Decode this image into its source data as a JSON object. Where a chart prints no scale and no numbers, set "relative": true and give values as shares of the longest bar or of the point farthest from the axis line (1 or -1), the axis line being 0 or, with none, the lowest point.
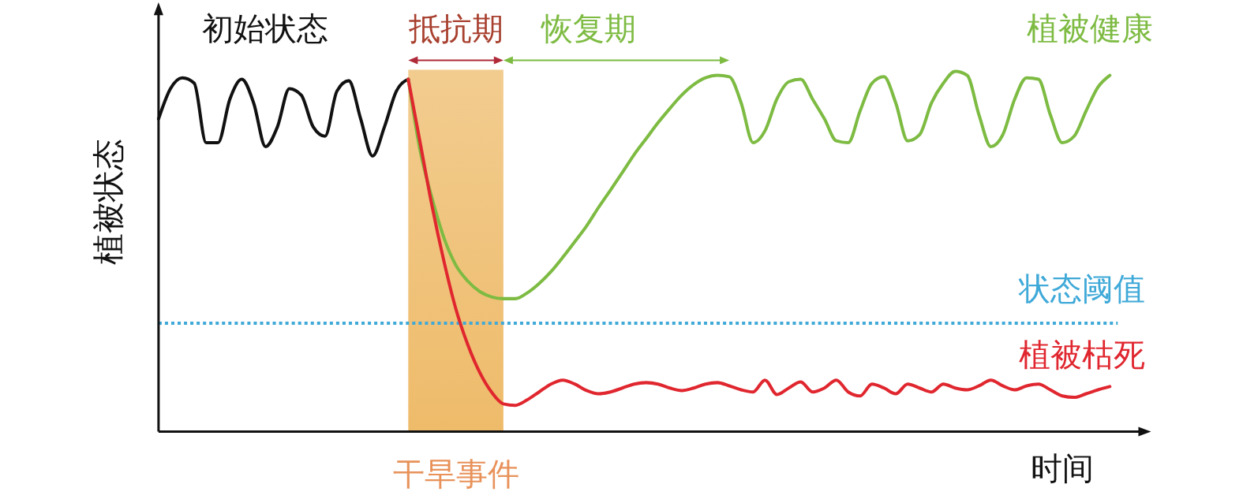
{
  "chart_data": {
    "type": "line",
    "relative": true,
    "xlabel": "时间",
    "ylabel": "植被状态",
    "categories": [
      null,
      null,
      null,
      null,
      null,
      null,
      null,
      null,
      null,
      null,
      null,
      null,
      null,
      null,
      null,
      null,
      null,
      null,
      null,
      null,
      null,
      null,
      null,
      null,
      null,
      null,
      null,
      null,
      null,
      null,
      null,
      null,
      null,
      null,
      null,
      null,
      null,
      null,
      null,
      null,
      null,
      null,
      null,
      null,
      null,
      null,
      null,
      null,
      null,
      null,
      null,
      null,
      null,
      null,
      null,
      null,
      null,
      null,
      null,
      null,
      null,
      null,
      null,
      null,
      null,
      null,
      null,
      null,
      null,
      null,
      null,
      null,
      null,
      null,
      null,
      null,
      null,
      null,
      null,
      null,
      null
    ],
    "series": [
      {
        "name": "初始状态",
        "color": "#111111",
        "values": [
          0.868,
          0.952,
          0.982,
          0.967,
          0.802,
          0.802,
          0.923,
          0.978,
          0.912,
          0.791,
          0.846,
          0.952,
          0.934,
          0.846,
          0.82,
          0.945,
          0.974,
          0.868,
          0.765,
          0.846,
          0.945,
          0.978,
          null,
          null,
          null,
          null,
          null,
          null,
          null,
          null,
          null,
          null,
          null,
          null,
          null,
          null,
          null,
          null,
          null,
          null,
          null,
          null,
          null,
          null,
          null,
          null,
          null,
          null,
          null,
          null,
          null,
          null,
          null,
          null,
          null,
          null,
          null,
          null,
          null,
          null,
          null,
          null,
          null,
          null,
          null,
          null,
          null,
          null,
          null,
          null,
          null,
          null,
          null,
          null,
          null,
          null,
          null,
          null,
          null,
          null,
          null
        ]
      },
      {
        "name": "植被健康",
        "color": "#7dbb42",
        "values": [
          null,
          null,
          null,
          null,
          null,
          null,
          null,
          null,
          null,
          null,
          null,
          null,
          null,
          null,
          null,
          null,
          null,
          null,
          null,
          null,
          null,
          0.978,
          0.78,
          0.648,
          0.538,
          0.462,
          0.418,
          0.389,
          0.374,
          0.369,
          0.369,
          0.385,
          0.411,
          0.444,
          0.484,
          0.527,
          0.571,
          0.622,
          0.67,
          0.719,
          0.769,
          0.813,
          0.857,
          0.897,
          0.934,
          0.963,
          0.982,
          0.989,
          0.985,
          0.912,
          0.802,
          0.835,
          0.923,
          0.971,
          0.978,
          0.923,
          0.868,
          0.807,
          0.802,
          0.89,
          0.967,
          0.985,
          0.912,
          0.807,
          0.824,
          0.912,
          0.967,
          1,
          0.989,
          0.879,
          0.791,
          0.824,
          0.923,
          0.982,
          0.978,
          0.879,
          0.802,
          0.82,
          0.89,
          0.956,
          0.989
        ]
      },
      {
        "name": "植被枯死",
        "color": "#e0262e",
        "values": [
          null,
          null,
          null,
          null,
          null,
          null,
          null,
          null,
          null,
          null,
          null,
          null,
          null,
          null,
          null,
          null,
          null,
          null,
          null,
          null,
          null,
          0.978,
          0.802,
          0.626,
          0.473,
          0.341,
          0.242,
          0.165,
          0.11,
          0.077,
          0.073,
          0.088,
          0.11,
          0.132,
          0.143,
          0.132,
          0.114,
          0.105,
          0.11,
          0.121,
          0.132,
          0.136,
          0.132,
          0.121,
          0.114,
          0.121,
          0.132,
          0.136,
          0.127,
          0.116,
          0.11,
          0.143,
          0.103,
          0.121,
          0.138,
          0.11,
          0.121,
          0.143,
          0.11,
          0.099,
          0.132,
          0.121,
          0.105,
          0.132,
          0.121,
          0.11,
          0.132,
          0.121,
          0.116,
          0.127,
          0.143,
          0.127,
          0.116,
          0.127,
          0.132,
          0.116,
          0.099,
          0.095,
          0.105,
          0.116,
          0.125
        ]
      }
    ],
    "ref_lines": [
      {
        "axis": "y",
        "value": 0.301,
        "label": "状态阈值",
        "color": "#3fa9d8",
        "line_style": "dotted"
      }
    ],
    "annotations": [
      "抵抗期",
      "恢复期",
      "干旱事件"
    ],
    "line_style": "solid"
  }
}
